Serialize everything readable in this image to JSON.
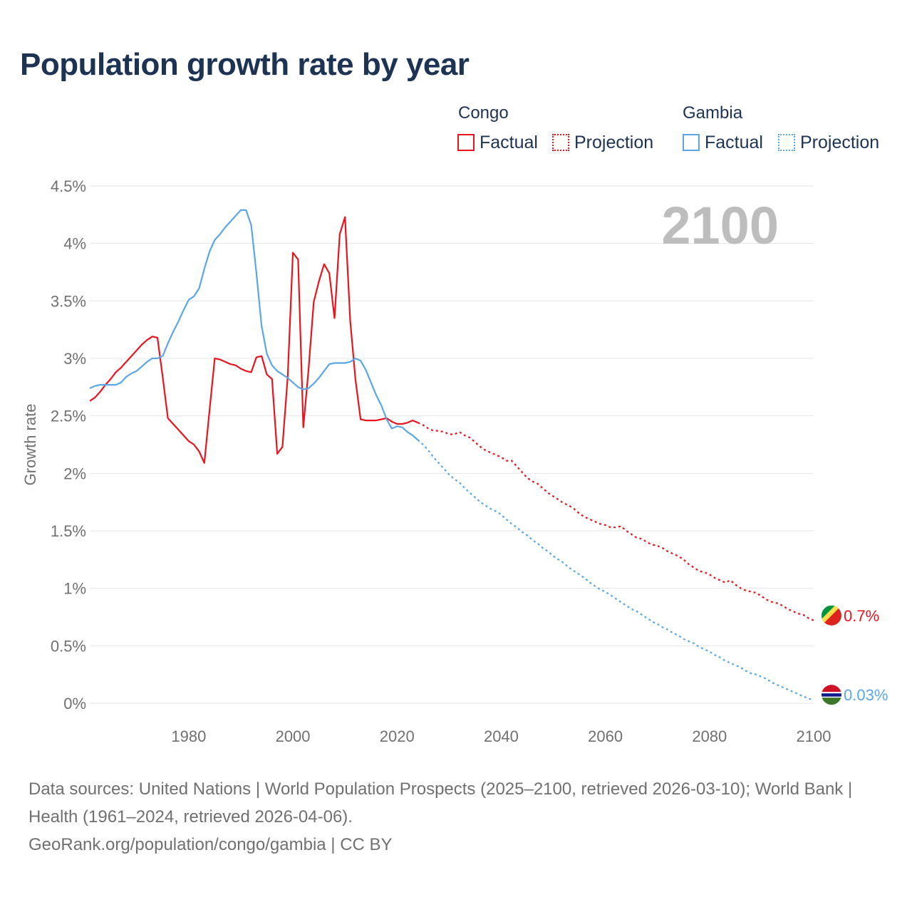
{
  "title": "Population growth rate by year",
  "legend": {
    "groups": [
      {
        "country": "Congo",
        "factual": "Factual",
        "projection": "Projection",
        "color": "#e8141e"
      },
      {
        "country": "Gambia",
        "factual": "Factual",
        "projection": "Projection",
        "color": "#5ba6e4"
      }
    ]
  },
  "year_label": "2100",
  "sources": {
    "line1": "Data sources: United Nations | World Population Prospects (2025–2100, retrieved 2026-03-10); World Bank | Health (1961–2024, retrieved 2026-04-06).",
    "line2": "GeoRank.org/population/congo/gambia | CC BY"
  },
  "chart_data": {
    "type": "line",
    "title": "Population growth rate by year",
    "xlabel": "",
    "ylabel": "Growth rate",
    "xlim": [
      1961,
      2100
    ],
    "ylim": [
      0,
      4.5
    ],
    "x_ticks": [
      1980,
      2000,
      2020,
      2040,
      2060,
      2080,
      2100
    ],
    "y_ticks": [
      {
        "value": 0,
        "label": "0%"
      },
      {
        "value": 0.5,
        "label": "0.5%"
      },
      {
        "value": 1,
        "label": "1%"
      },
      {
        "value": 1.5,
        "label": "1.5%"
      },
      {
        "value": 2,
        "label": "2%"
      },
      {
        "value": 2.5,
        "label": "2.5%"
      },
      {
        "value": 3,
        "label": "3%"
      },
      {
        "value": 3.5,
        "label": "3.5%"
      },
      {
        "value": 4,
        "label": "4%"
      },
      {
        "value": 4.5,
        "label": "4.5%"
      }
    ],
    "grid": true,
    "series": [
      {
        "name": "Congo",
        "color": "#e8141e",
        "end_label": "0.7%",
        "flag": "congo",
        "factual": [
          [
            1961,
            2.63
          ],
          [
            1962,
            2.66
          ],
          [
            1963,
            2.71
          ],
          [
            1964,
            2.77
          ],
          [
            1965,
            2.82
          ],
          [
            1966,
            2.88
          ],
          [
            1967,
            2.92
          ],
          [
            1968,
            2.97
          ],
          [
            1969,
            3.02
          ],
          [
            1970,
            3.07
          ],
          [
            1971,
            3.12
          ],
          [
            1972,
            3.16
          ],
          [
            1973,
            3.19
          ],
          [
            1974,
            3.18
          ],
          [
            1975,
            2.84
          ],
          [
            1976,
            2.48
          ],
          [
            1977,
            2.43
          ],
          [
            1978,
            2.38
          ],
          [
            1979,
            2.33
          ],
          [
            1980,
            2.28
          ],
          [
            1981,
            2.25
          ],
          [
            1982,
            2.19
          ],
          [
            1983,
            2.09
          ],
          [
            1984,
            2.55
          ],
          [
            1985,
            3.0
          ],
          [
            1986,
            2.99
          ],
          [
            1987,
            2.97
          ],
          [
            1988,
            2.95
          ],
          [
            1989,
            2.94
          ],
          [
            1990,
            2.91
          ],
          [
            1991,
            2.89
          ],
          [
            1992,
            2.88
          ],
          [
            1993,
            3.01
          ],
          [
            1994,
            3.02
          ],
          [
            1995,
            2.86
          ],
          [
            1996,
            2.82
          ],
          [
            1997,
            2.17
          ],
          [
            1998,
            2.23
          ],
          [
            1999,
            2.84
          ],
          [
            2000,
            3.92
          ],
          [
            2001,
            3.86
          ],
          [
            2002,
            2.4
          ],
          [
            2003,
            2.9
          ],
          [
            2004,
            3.49
          ],
          [
            2005,
            3.67
          ],
          [
            2006,
            3.82
          ],
          [
            2007,
            3.74
          ],
          [
            2008,
            3.35
          ],
          [
            2009,
            4.08
          ],
          [
            2010,
            4.23
          ],
          [
            2011,
            3.33
          ],
          [
            2012,
            2.82
          ],
          [
            2013,
            2.47
          ],
          [
            2014,
            2.46
          ],
          [
            2015,
            2.46
          ],
          [
            2016,
            2.46
          ],
          [
            2017,
            2.47
          ],
          [
            2018,
            2.48
          ],
          [
            2019,
            2.45
          ],
          [
            2020,
            2.43
          ],
          [
            2021,
            2.43
          ],
          [
            2022,
            2.44
          ],
          [
            2023,
            2.46
          ],
          [
            2024,
            2.44
          ]
        ],
        "projection": [
          [
            2024,
            2.44
          ],
          [
            2025,
            2.42
          ],
          [
            2026,
            2.39
          ],
          [
            2027,
            2.37
          ],
          [
            2028,
            2.37
          ],
          [
            2029,
            2.36
          ],
          [
            2030,
            2.34
          ],
          [
            2031,
            2.34
          ],
          [
            2032,
            2.36
          ],
          [
            2033,
            2.33
          ],
          [
            2034,
            2.31
          ],
          [
            2035,
            2.27
          ],
          [
            2036,
            2.23
          ],
          [
            2037,
            2.2
          ],
          [
            2038,
            2.18
          ],
          [
            2039,
            2.16
          ],
          [
            2040,
            2.14
          ],
          [
            2041,
            2.11
          ],
          [
            2042,
            2.11
          ],
          [
            2043,
            2.06
          ],
          [
            2044,
            2.01
          ],
          [
            2045,
            1.96
          ],
          [
            2046,
            1.93
          ],
          [
            2047,
            1.91
          ],
          [
            2048,
            1.87
          ],
          [
            2049,
            1.83
          ],
          [
            2050,
            1.8
          ],
          [
            2051,
            1.77
          ],
          [
            2052,
            1.74
          ],
          [
            2053,
            1.72
          ],
          [
            2054,
            1.69
          ],
          [
            2055,
            1.65
          ],
          [
            2056,
            1.62
          ],
          [
            2057,
            1.6
          ],
          [
            2058,
            1.58
          ],
          [
            2059,
            1.56
          ],
          [
            2060,
            1.55
          ],
          [
            2061,
            1.53
          ],
          [
            2062,
            1.53
          ],
          [
            2063,
            1.54
          ],
          [
            2064,
            1.5
          ],
          [
            2065,
            1.47
          ],
          [
            2066,
            1.44
          ],
          [
            2067,
            1.43
          ],
          [
            2068,
            1.4
          ],
          [
            2069,
            1.38
          ],
          [
            2070,
            1.37
          ],
          [
            2071,
            1.35
          ],
          [
            2072,
            1.32
          ],
          [
            2073,
            1.3
          ],
          [
            2074,
            1.28
          ],
          [
            2075,
            1.25
          ],
          [
            2076,
            1.21
          ],
          [
            2077,
            1.18
          ],
          [
            2078,
            1.15
          ],
          [
            2079,
            1.14
          ],
          [
            2080,
            1.12
          ],
          [
            2081,
            1.09
          ],
          [
            2082,
            1.07
          ],
          [
            2083,
            1.05
          ],
          [
            2084,
            1.07
          ],
          [
            2085,
            1.03
          ],
          [
            2086,
            1.0
          ],
          [
            2087,
            0.98
          ],
          [
            2088,
            0.97
          ],
          [
            2089,
            0.96
          ],
          [
            2090,
            0.93
          ],
          [
            2091,
            0.9
          ],
          [
            2092,
            0.88
          ],
          [
            2093,
            0.87
          ],
          [
            2094,
            0.85
          ],
          [
            2095,
            0.82
          ],
          [
            2096,
            0.8
          ],
          [
            2097,
            0.78
          ],
          [
            2098,
            0.77
          ],
          [
            2099,
            0.74
          ],
          [
            2100,
            0.72
          ]
        ]
      },
      {
        "name": "Gambia",
        "color": "#5ba6e4",
        "end_label": "0.03%",
        "flag": "gambia",
        "factual": [
          [
            1961,
            2.74
          ],
          [
            1962,
            2.76
          ],
          [
            1963,
            2.77
          ],
          [
            1964,
            2.77
          ],
          [
            1965,
            2.77
          ],
          [
            1966,
            2.77
          ],
          [
            1967,
            2.79
          ],
          [
            1968,
            2.84
          ],
          [
            1969,
            2.87
          ],
          [
            1970,
            2.89
          ],
          [
            1971,
            2.93
          ],
          [
            1972,
            2.97
          ],
          [
            1973,
            3.0
          ],
          [
            1974,
            3.0
          ],
          [
            1975,
            3.02
          ],
          [
            1976,
            3.13
          ],
          [
            1977,
            3.23
          ],
          [
            1978,
            3.32
          ],
          [
            1979,
            3.42
          ],
          [
            1980,
            3.51
          ],
          [
            1981,
            3.54
          ],
          [
            1982,
            3.61
          ],
          [
            1983,
            3.78
          ],
          [
            1984,
            3.93
          ],
          [
            1985,
            4.03
          ],
          [
            1986,
            4.08
          ],
          [
            1987,
            4.14
          ],
          [
            1988,
            4.19
          ],
          [
            1989,
            4.24
          ],
          [
            1990,
            4.29
          ],
          [
            1991,
            4.29
          ],
          [
            1992,
            4.16
          ],
          [
            1993,
            3.74
          ],
          [
            1994,
            3.28
          ],
          [
            1995,
            3.04
          ],
          [
            1996,
            2.94
          ],
          [
            1997,
            2.89
          ],
          [
            1998,
            2.86
          ],
          [
            1999,
            2.83
          ],
          [
            2000,
            2.79
          ],
          [
            2001,
            2.75
          ],
          [
            2002,
            2.73
          ],
          [
            2003,
            2.74
          ],
          [
            2004,
            2.78
          ],
          [
            2005,
            2.83
          ],
          [
            2006,
            2.89
          ],
          [
            2007,
            2.95
          ],
          [
            2008,
            2.96
          ],
          [
            2009,
            2.96
          ],
          [
            2010,
            2.96
          ],
          [
            2011,
            2.97
          ],
          [
            2012,
            3.0
          ],
          [
            2013,
            2.98
          ],
          [
            2014,
            2.9
          ],
          [
            2015,
            2.79
          ],
          [
            2016,
            2.68
          ],
          [
            2017,
            2.59
          ],
          [
            2018,
            2.47
          ],
          [
            2019,
            2.39
          ],
          [
            2020,
            2.41
          ],
          [
            2021,
            2.4
          ],
          [
            2022,
            2.36
          ],
          [
            2023,
            2.33
          ],
          [
            2024,
            2.29
          ]
        ],
        "projection": [
          [
            2024,
            2.29
          ],
          [
            2025,
            2.25
          ],
          [
            2026,
            2.2
          ],
          [
            2027,
            2.14
          ],
          [
            2028,
            2.09
          ],
          [
            2029,
            2.04
          ],
          [
            2030,
            1.99
          ],
          [
            2031,
            1.95
          ],
          [
            2032,
            1.92
          ],
          [
            2033,
            1.87
          ],
          [
            2034,
            1.83
          ],
          [
            2035,
            1.79
          ],
          [
            2036,
            1.75
          ],
          [
            2037,
            1.72
          ],
          [
            2038,
            1.69
          ],
          [
            2039,
            1.67
          ],
          [
            2040,
            1.64
          ],
          [
            2041,
            1.6
          ],
          [
            2042,
            1.56
          ],
          [
            2043,
            1.53
          ],
          [
            2044,
            1.49
          ],
          [
            2045,
            1.46
          ],
          [
            2046,
            1.42
          ],
          [
            2047,
            1.39
          ],
          [
            2048,
            1.35
          ],
          [
            2049,
            1.32
          ],
          [
            2050,
            1.28
          ],
          [
            2051,
            1.25
          ],
          [
            2052,
            1.22
          ],
          [
            2053,
            1.18
          ],
          [
            2054,
            1.15
          ],
          [
            2055,
            1.12
          ],
          [
            2056,
            1.09
          ],
          [
            2057,
            1.05
          ],
          [
            2058,
            1.02
          ],
          [
            2059,
            0.99
          ],
          [
            2060,
            0.97
          ],
          [
            2061,
            0.94
          ],
          [
            2062,
            0.91
          ],
          [
            2063,
            0.88
          ],
          [
            2064,
            0.85
          ],
          [
            2065,
            0.82
          ],
          [
            2066,
            0.8
          ],
          [
            2067,
            0.77
          ],
          [
            2068,
            0.74
          ],
          [
            2069,
            0.71
          ],
          [
            2070,
            0.69
          ],
          [
            2071,
            0.66
          ],
          [
            2072,
            0.64
          ],
          [
            2073,
            0.61
          ],
          [
            2074,
            0.59
          ],
          [
            2075,
            0.56
          ],
          [
            2076,
            0.54
          ],
          [
            2077,
            0.52
          ],
          [
            2078,
            0.49
          ],
          [
            2079,
            0.47
          ],
          [
            2080,
            0.45
          ],
          [
            2081,
            0.42
          ],
          [
            2082,
            0.4
          ],
          [
            2083,
            0.37
          ],
          [
            2084,
            0.35
          ],
          [
            2085,
            0.33
          ],
          [
            2086,
            0.31
          ],
          [
            2087,
            0.28
          ],
          [
            2088,
            0.26
          ],
          [
            2089,
            0.25
          ],
          [
            2090,
            0.23
          ],
          [
            2091,
            0.21
          ],
          [
            2092,
            0.18
          ],
          [
            2093,
            0.16
          ],
          [
            2094,
            0.14
          ],
          [
            2095,
            0.12
          ],
          [
            2096,
            0.1
          ],
          [
            2097,
            0.08
          ],
          [
            2098,
            0.06
          ],
          [
            2099,
            0.04
          ],
          [
            2100,
            0.03
          ]
        ]
      }
    ]
  }
}
